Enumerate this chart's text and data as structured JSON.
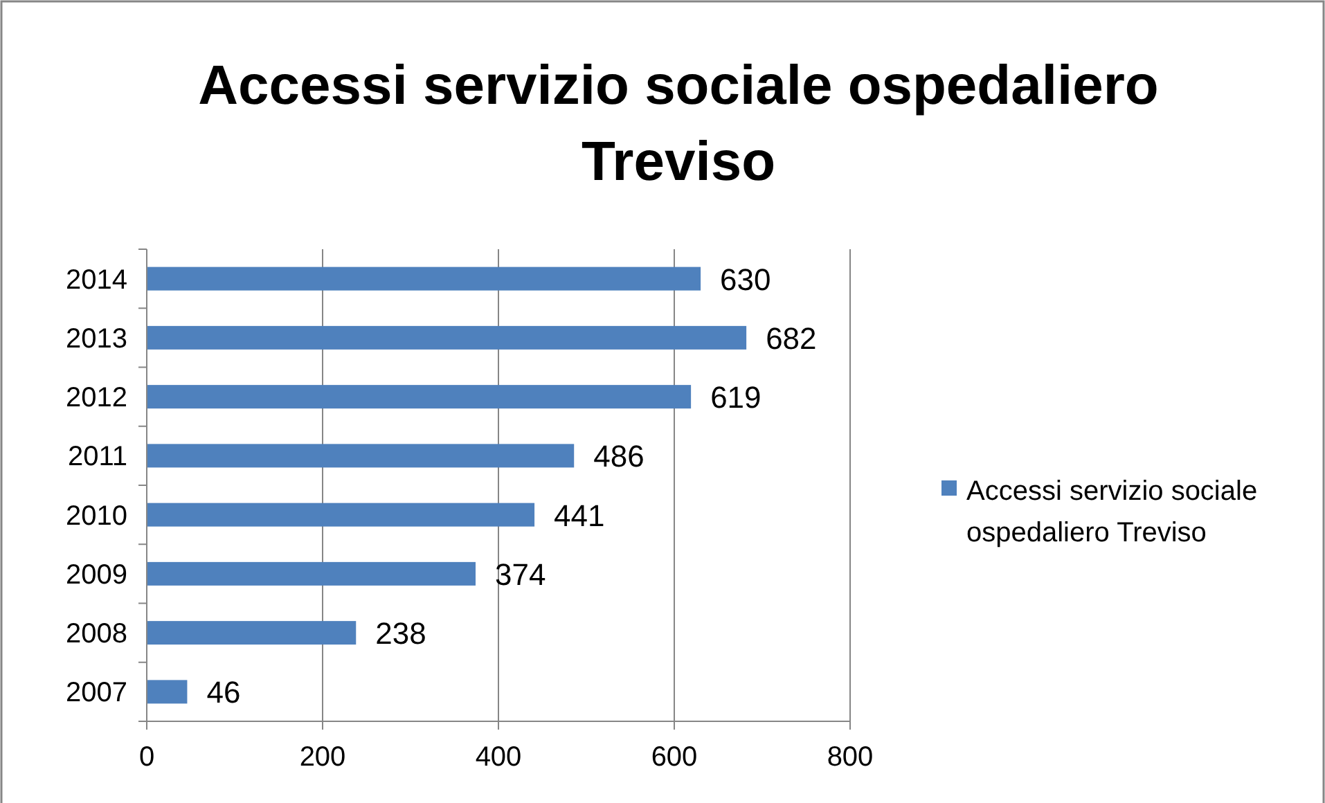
{
  "chart_data": {
    "type": "bar",
    "orientation": "horizontal",
    "title": "Accessi servizio sociale ospedaliero Treviso",
    "categories": [
      "2014",
      "2013",
      "2012",
      "2011",
      "2010",
      "2009",
      "2008",
      "2007"
    ],
    "series": [
      {
        "name": "Accessi servizio sociale ospedaliero Treviso",
        "color": "#4f81bd",
        "values": [
          630,
          682,
          619,
          486,
          441,
          374,
          238,
          46
        ]
      }
    ],
    "xlim": [
      0,
      800
    ],
    "xticks": [
      0,
      200,
      400,
      600,
      800
    ],
    "grid": "x",
    "legend": "right",
    "data_labels": true
  }
}
